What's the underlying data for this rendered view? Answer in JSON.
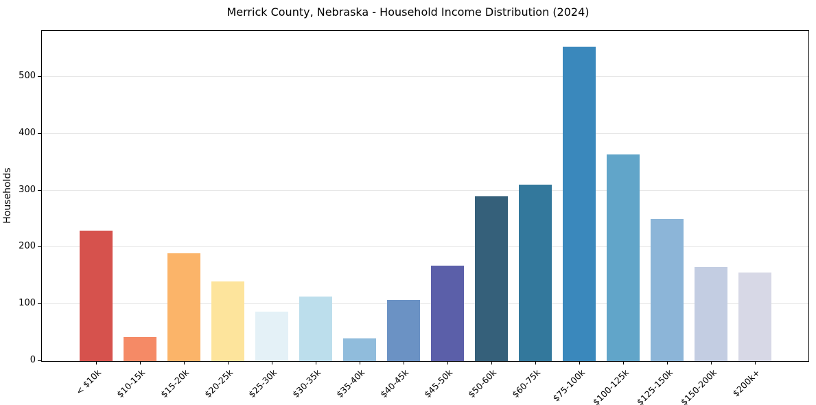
{
  "chart_data": {
    "type": "bar",
    "title": "Merrick County, Nebraska - Household Income Distribution (2024)",
    "xlabel": "",
    "ylabel": "Households",
    "categories": [
      "< $10k",
      "$10-15k",
      "$15-20k",
      "$20-25k",
      "$25-30k",
      "$30-35k",
      "$35-40k",
      "$40-45k",
      "$45-50k",
      "$50-60k",
      "$60-75k",
      "$75-100k",
      "$100-125k",
      "$125-150k",
      "$150-200k",
      "$200k+"
    ],
    "values": [
      229,
      42,
      190,
      140,
      87,
      113,
      40,
      107,
      168,
      290,
      310,
      553,
      364,
      250,
      165,
      156
    ],
    "bar_colors": [
      "#d6524d",
      "#f58a66",
      "#fbb469",
      "#fde49c",
      "#e4f1f7",
      "#bcdeec",
      "#90bcdc",
      "#6b92c4",
      "#5b5fa9",
      "#35607a",
      "#33789c",
      "#3a88bc",
      "#61a5c9",
      "#8cb5d8",
      "#c3cde2",
      "#d7d8e6"
    ],
    "yticks": [
      0,
      100,
      200,
      300,
      400,
      500
    ],
    "ylim": [
      0,
      581
    ],
    "grid": "horizontal",
    "grid_color": "#e7e7e7",
    "spine_color": "#000000",
    "background": "#ffffff",
    "legend": "none"
  }
}
